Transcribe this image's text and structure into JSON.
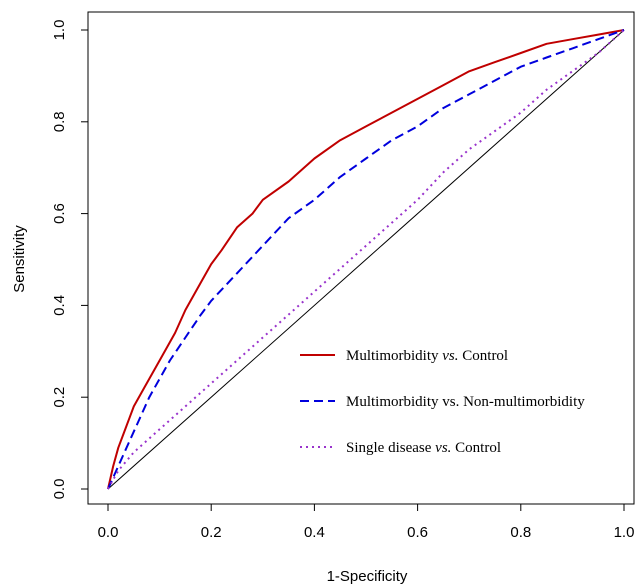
{
  "chart_data": {
    "type": "line",
    "xlabel": "1-Specificity",
    "ylabel": "Sensitivity",
    "xlim": [
      0,
      1
    ],
    "ylim": [
      0,
      1
    ],
    "xticks": [
      "0.0",
      "0.2",
      "0.4",
      "0.6",
      "0.8",
      "1.0"
    ],
    "yticks": [
      "0.0",
      "0.2",
      "0.4",
      "0.6",
      "0.8",
      "1.0"
    ],
    "grid": false,
    "legend_position": "bottom-right",
    "reference_line": {
      "x": [
        0,
        1
      ],
      "y": [
        0,
        1
      ],
      "color": "#000000"
    },
    "series": [
      {
        "name": "Multimorbidity vs. Control",
        "name_parts": [
          {
            "text": "Multimorbidity ",
            "italic": false
          },
          {
            "text": "vs.",
            "italic": true
          },
          {
            "text": " Control",
            "italic": false
          }
        ],
        "color": "#c00000",
        "style": "solid",
        "x": [
          0,
          0.01,
          0.02,
          0.03,
          0.05,
          0.07,
          0.1,
          0.13,
          0.15,
          0.18,
          0.2,
          0.22,
          0.25,
          0.28,
          0.3,
          0.35,
          0.4,
          0.45,
          0.5,
          0.55,
          0.6,
          0.65,
          0.7,
          0.75,
          0.8,
          0.85,
          0.9,
          0.95,
          1.0
        ],
        "y": [
          0,
          0.05,
          0.09,
          0.12,
          0.18,
          0.22,
          0.28,
          0.34,
          0.39,
          0.45,
          0.49,
          0.52,
          0.57,
          0.6,
          0.63,
          0.67,
          0.72,
          0.76,
          0.79,
          0.82,
          0.85,
          0.88,
          0.91,
          0.93,
          0.95,
          0.97,
          0.98,
          0.99,
          1.0
        ]
      },
      {
        "name": "Multimorbidity vs. Non-multimorbidity",
        "name_parts": [
          {
            "text": "Multimorbidity vs. Non-multimorbidity",
            "italic": false
          }
        ],
        "color": "#0000dd",
        "style": "dashed",
        "x": [
          0,
          0.02,
          0.04,
          0.06,
          0.08,
          0.1,
          0.12,
          0.15,
          0.18,
          0.2,
          0.25,
          0.3,
          0.35,
          0.4,
          0.45,
          0.5,
          0.55,
          0.6,
          0.65,
          0.7,
          0.75,
          0.8,
          0.85,
          0.9,
          0.95,
          1.0
        ],
        "y": [
          0,
          0.05,
          0.1,
          0.15,
          0.2,
          0.24,
          0.28,
          0.33,
          0.38,
          0.41,
          0.47,
          0.53,
          0.59,
          0.63,
          0.68,
          0.72,
          0.76,
          0.79,
          0.83,
          0.86,
          0.89,
          0.92,
          0.94,
          0.96,
          0.98,
          1.0
        ]
      },
      {
        "name": "Single disease vs. Control",
        "name_parts": [
          {
            "text": "Single disease ",
            "italic": false
          },
          {
            "text": "vs.",
            "italic": true
          },
          {
            "text": " Control",
            "italic": false
          }
        ],
        "color": "#9933cc",
        "style": "dotted",
        "x": [
          0,
          0.02,
          0.05,
          0.1,
          0.15,
          0.2,
          0.25,
          0.3,
          0.35,
          0.4,
          0.45,
          0.5,
          0.55,
          0.6,
          0.65,
          0.7,
          0.75,
          0.8,
          0.85,
          0.9,
          0.95,
          1.0
        ],
        "y": [
          0,
          0.04,
          0.08,
          0.13,
          0.18,
          0.23,
          0.28,
          0.33,
          0.38,
          0.43,
          0.48,
          0.53,
          0.58,
          0.63,
          0.69,
          0.74,
          0.78,
          0.82,
          0.87,
          0.91,
          0.95,
          1.0
        ]
      }
    ]
  }
}
